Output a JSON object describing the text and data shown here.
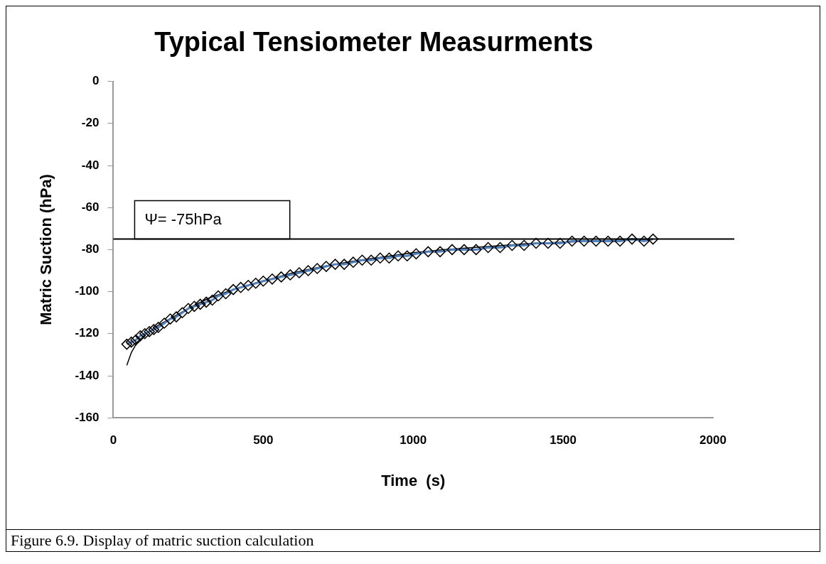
{
  "chart_data": {
    "type": "line",
    "title": "Typical Tensiometer Measurments",
    "xlabel": "Time  (s)",
    "ylabel": "Matric Suction (hPa)",
    "xlim": [
      0,
      2000
    ],
    "xticks": [
      0,
      500,
      1000,
      1500,
      2000
    ],
    "ylim": [
      -160,
      0
    ],
    "yticks": [
      -160,
      -140,
      -120,
      -100,
      -80,
      -60,
      -40,
      -20,
      0
    ],
    "grid": false,
    "legend": false,
    "series": [
      {
        "marker": "diamond",
        "color": "#4f81bd",
        "x": [
          45,
          60,
          75,
          90,
          105,
          120,
          135,
          150,
          170,
          190,
          210,
          230,
          250,
          270,
          290,
          310,
          330,
          350,
          375,
          400,
          425,
          450,
          475,
          500,
          530,
          560,
          590,
          620,
          650,
          680,
          710,
          740,
          770,
          800,
          830,
          860,
          890,
          920,
          950,
          980,
          1010,
          1050,
          1090,
          1130,
          1170,
          1210,
          1250,
          1290,
          1330,
          1370,
          1410,
          1450,
          1490,
          1530,
          1570,
          1610,
          1650,
          1690,
          1730,
          1770,
          1800
        ],
        "values": [
          -125,
          -124,
          -123,
          -121,
          -120,
          -119,
          -118,
          -117,
          -115,
          -113,
          -112,
          -110,
          -108,
          -107,
          -106,
          -105,
          -104,
          -102,
          -101,
          -99,
          -98,
          -97,
          -96,
          -95,
          -94,
          -93,
          -92,
          -91,
          -90,
          -89,
          -88,
          -87,
          -87,
          -86,
          -85,
          -85,
          -84,
          -84,
          -83,
          -83,
          -82,
          -81,
          -81,
          -80,
          -80,
          -80,
          -79,
          -79,
          -78,
          -78,
          -77,
          -77,
          -77,
          -76,
          -76,
          -76,
          -76,
          -76,
          -75,
          -76,
          -75
        ]
      },
      {
        "marker": "none",
        "color": "#000000",
        "x": [
          45,
          60,
          80,
          110,
          150,
          200,
          250,
          320,
          400,
          500,
          600,
          700,
          800,
          900,
          1000,
          1100,
          1200,
          1300,
          1400,
          1500,
          1600,
          1700,
          1800
        ],
        "values": [
          -135,
          -129,
          -124,
          -120,
          -116,
          -112,
          -108,
          -103,
          -99,
          -95,
          -91,
          -88,
          -85.5,
          -83.5,
          -81.5,
          -80,
          -79,
          -78,
          -77,
          -76.5,
          -76,
          -75.5,
          -75
        ]
      }
    ],
    "ref_lines": [
      {
        "axis": "y",
        "value": -75,
        "label": "Ψ= -75hPa",
        "color": "#000000"
      }
    ],
    "annotations": [
      "Figure 6.9. Display of matric suction calculation"
    ]
  }
}
